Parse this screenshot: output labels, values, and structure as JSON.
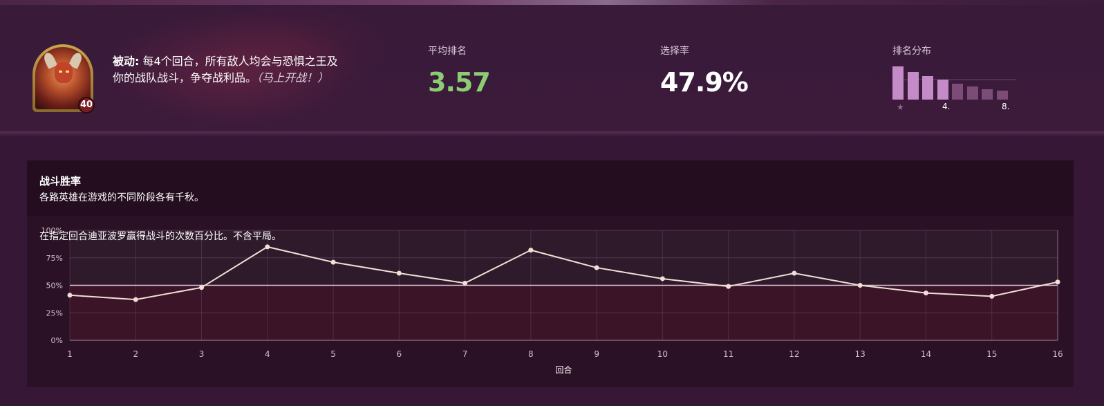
{
  "hero": {
    "level": "40",
    "passive_label": "被动:",
    "passive_text": " 每4个回合，所有敌人均会与恐惧之王及你的战队战斗，争夺战利品。",
    "passive_note": "（马上开战！）"
  },
  "stats": {
    "avg_rank_label": "平均排名",
    "avg_rank_value": "3.57",
    "pick_rate_label": "选择率",
    "pick_rate_value": "47.9%",
    "rank_dist_label": "排名分布",
    "rank_dist_ticks": [
      "4.",
      "8."
    ],
    "rank_dist_values": [
      0.1,
      0.083,
      0.07,
      0.06,
      0.048,
      0.039,
      0.031,
      0.027
    ],
    "colors": {
      "top_half": "#c48bc8",
      "bottom_half": "#7c4c78"
    }
  },
  "card": {
    "title": "战斗胜率",
    "subtitle": "各路英雄在游戏的不同阶段各有千秋。",
    "description": "在指定回合迪亚波罗赢得战斗的次数百分比。不含平局。"
  },
  "chart_data": {
    "type": "line",
    "x": [
      1,
      2,
      3,
      4,
      5,
      6,
      7,
      8,
      9,
      10,
      11,
      12,
      13,
      14,
      15,
      16
    ],
    "values": [
      41,
      37,
      48,
      85,
      71,
      61,
      52,
      82,
      66,
      56,
      49,
      61,
      50,
      43,
      40,
      53
    ],
    "xlabel": "回合",
    "ylabel": "",
    "ylim": [
      0,
      100
    ],
    "yticks": [
      "0%",
      "25%",
      "50%",
      "75%",
      "100%"
    ],
    "reference_line": 50,
    "grid": true,
    "colors": {
      "line": "#efdfd6",
      "point": "#efdfd6",
      "upper_fill": "#2f1a2b",
      "lower_fill": "#3c1428",
      "grid": "#6b4a66"
    }
  }
}
